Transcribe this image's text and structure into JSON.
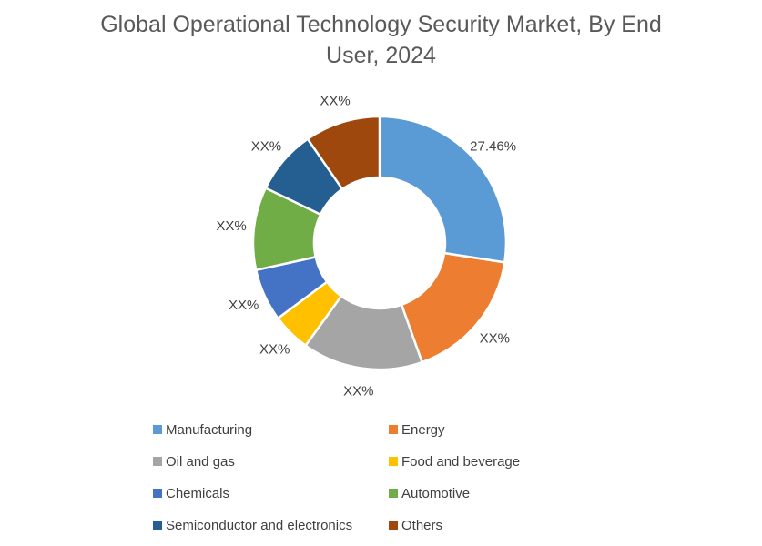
{
  "title_lines": [
    "Global Operational Technology Security Market, By End",
    "User, 2024"
  ],
  "colors": {
    "title": "#595959",
    "data_label": "#404040",
    "slice_border": "#FFFFFF"
  },
  "chart_data": {
    "type": "pie",
    "subtype": "donut",
    "title": "Global Operational Technology Security Market, By End User, 2024",
    "start_angle_deg": 0,
    "direction": "clockwise",
    "hole_ratio": 0.52,
    "legend_position": "bottom, 2 columns",
    "slices": [
      {
        "label": "Manufacturing",
        "data_label": "27.46%",
        "percent": 27.46,
        "color": "#5B9BD5"
      },
      {
        "label": "Energy",
        "data_label": "XX%",
        "percent": 17.1,
        "color": "#ED7D31"
      },
      {
        "label": "Oil and gas",
        "data_label": "XX%",
        "percent": 15.4,
        "color": "#A5A5A5"
      },
      {
        "label": "Food and beverage",
        "data_label": "XX%",
        "percent": 4.9,
        "color": "#FFC000"
      },
      {
        "label": "Chemicals",
        "data_label": "XX%",
        "percent": 6.7,
        "color": "#4472C4"
      },
      {
        "label": "Automotive",
        "data_label": "XX%",
        "percent": 10.6,
        "color": "#70AD47"
      },
      {
        "label": "Semiconductor and electronics",
        "data_label": "XX%",
        "percent": 8.2,
        "color": "#255E91"
      },
      {
        "label": "Others",
        "data_label": "XX%",
        "percent": 9.64,
        "color": "#9E480E"
      }
    ]
  }
}
